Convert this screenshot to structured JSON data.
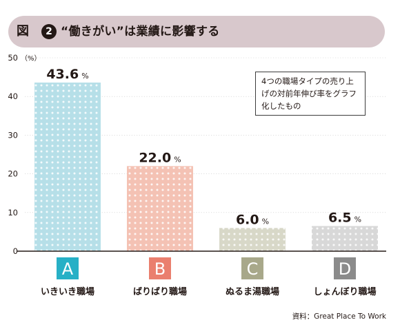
{
  "title": {
    "prefix": "図",
    "number": "2",
    "text": "“働きがい”は業績に影響する"
  },
  "note": "4つの職場タイプの売り上げの対前年伸び率をグラフ化したもの",
  "source": "資料：Great Place To Work",
  "colors": {
    "title_bg": "#d8c8cc",
    "A": "#b6dfe8",
    "B": "#f4c2b4",
    "C": "#d8d8c8",
    "D": "#d8d8d8",
    "badge_A": "#27b0c6",
    "badge_B": "#ea7f6e",
    "badge_C": "#a8a88a",
    "badge_D": "#8b8b8b"
  },
  "chart_data": {
    "type": "bar",
    "categories": [
      "A",
      "B",
      "C",
      "D"
    ],
    "category_names": [
      "いきいき職場",
      "ばりばり職場",
      "ぬるま湯職場",
      "しょんぼり職場"
    ],
    "values": [
      43.6,
      22.0,
      6.0,
      6.5
    ],
    "value_labels": [
      "43.6",
      "22.0",
      "6.0",
      "6.5"
    ],
    "unit": "%",
    "ylabel": "（%）",
    "ylim": [
      0,
      50
    ],
    "yticks": [
      0,
      10,
      20,
      30,
      40,
      50
    ],
    "grid": true
  }
}
